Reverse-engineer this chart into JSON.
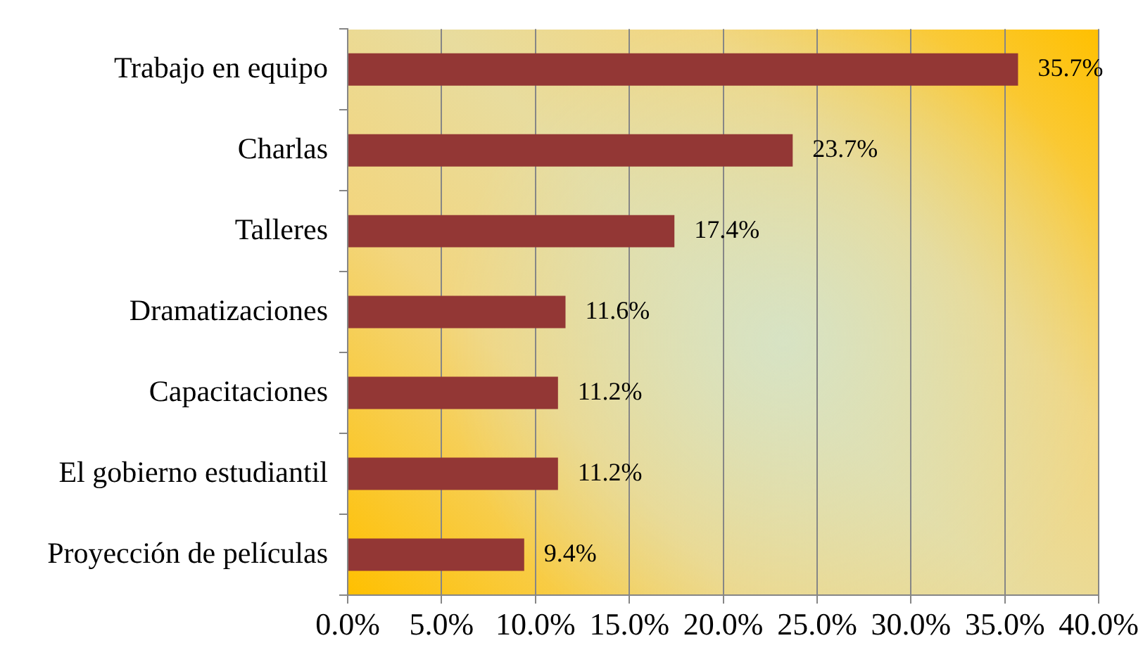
{
  "chart_data": {
    "type": "bar",
    "orientation": "horizontal",
    "categories": [
      "Trabajo en equipo",
      "Charlas",
      "Talleres",
      "Dramatizaciones",
      "Capacitaciones",
      "El gobierno estudiantil",
      "Proyección de películas"
    ],
    "values": [
      35.7,
      23.7,
      17.4,
      11.6,
      11.2,
      11.2,
      9.4
    ],
    "value_labels": [
      "35.7%",
      "23.7%",
      "17.4%",
      "11.6%",
      "11.2%",
      "11.2%",
      "9.4%"
    ],
    "color": "#933735",
    "xlim": [
      0,
      40
    ],
    "xticks": [
      {
        "value": 0,
        "label": "0.0%"
      },
      {
        "value": 5,
        "label": "5.0%"
      },
      {
        "value": 10,
        "label": "10.0%"
      },
      {
        "value": 15,
        "label": "15.0%"
      },
      {
        "value": 20,
        "label": "20.0%"
      },
      {
        "value": 25,
        "label": "25.0%"
      },
      {
        "value": 30,
        "label": "30.0%"
      },
      {
        "value": 35,
        "label": "35.0%"
      },
      {
        "value": 40,
        "label": "40.0%"
      }
    ],
    "grid": "x"
  }
}
